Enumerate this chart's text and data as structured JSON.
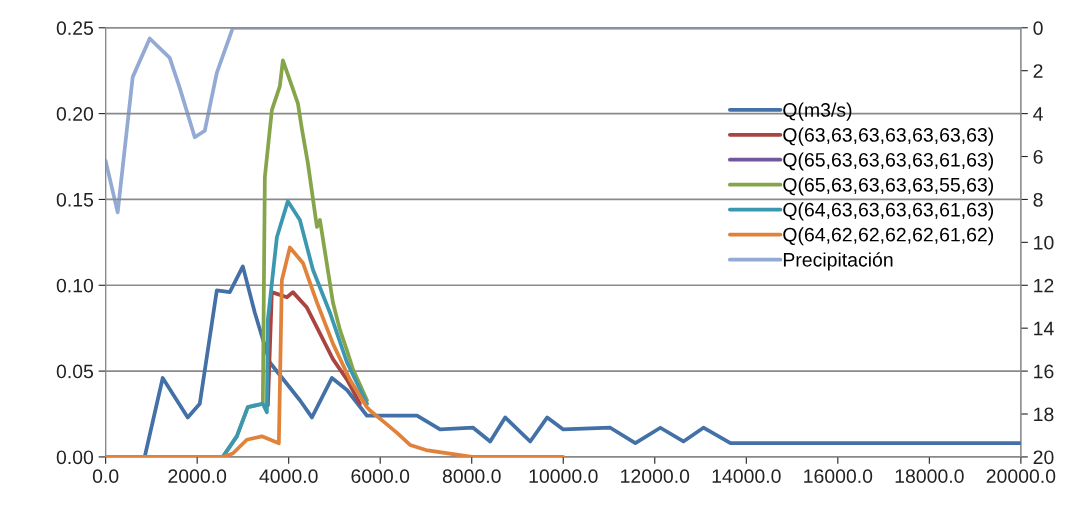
{
  "chart_data": {
    "type": "line",
    "xlim": [
      0,
      20000
    ],
    "xticks": [
      {
        "value": 0,
        "label": "0.0"
      },
      {
        "value": 2000,
        "label": "2000.0"
      },
      {
        "value": 4000,
        "label": "4000.0"
      },
      {
        "value": 6000,
        "label": "6000.0"
      },
      {
        "value": 8000,
        "label": "8000.0"
      },
      {
        "value": 10000,
        "label": "10000.0"
      },
      {
        "value": 12000,
        "label": "12000.0"
      },
      {
        "value": 14000,
        "label": "14000.0"
      },
      {
        "value": 16000,
        "label": "16000.0"
      },
      {
        "value": 18000,
        "label": "18000.0"
      },
      {
        "value": 20000,
        "label": "20000.0"
      }
    ],
    "ylim": [
      0,
      0.25
    ],
    "yticks": [
      {
        "value": 0,
        "label": "0.00"
      },
      {
        "value": 0.05,
        "label": "0.05"
      },
      {
        "value": 0.1,
        "label": "0.10"
      },
      {
        "value": 0.15,
        "label": "0.15"
      },
      {
        "value": 0.2,
        "label": "0.20"
      },
      {
        "value": 0.25,
        "label": "0.25"
      }
    ],
    "y2lim": [
      20,
      0
    ],
    "y2ticks": [
      0,
      2,
      4,
      6,
      8,
      10,
      12,
      14,
      16,
      18,
      20
    ],
    "grid": "y",
    "legend": "right",
    "marker": "none",
    "line_style": "solid",
    "series": [
      {
        "name": "Q(m3/s)",
        "color": "#4470a8",
        "x": [
          0,
          853,
          1247,
          1794,
          2057,
          2429,
          2713,
          2998,
          3260,
          3589,
          4245,
          4508,
          4945,
          5274,
          5711,
          5842,
          6805,
          7308,
          8031,
          8403,
          8731,
          9278,
          9650,
          10000,
          11028,
          11575,
          12122,
          12626,
          13063,
          13654,
          20000
        ],
        "values": [
          0,
          0,
          0.046,
          0.023,
          0.031,
          0.097,
          0.096,
          0.111,
          0.084,
          0.055,
          0.033,
          0.023,
          0.046,
          0.039,
          0.024,
          0.024,
          0.024,
          0.016,
          0.017,
          0.009,
          0.023,
          0.009,
          0.023,
          0.016,
          0.017,
          0.008,
          0.017,
          0.009,
          0.017,
          0.008,
          0.008
        ]
      },
      {
        "name": "Q(63,63,63,63,63,63,63)",
        "color": "#a94441",
        "x": [
          3545,
          3632,
          3961,
          4092,
          4398,
          4683,
          4967,
          5274,
          5558
        ],
        "values": [
          0.03,
          0.096,
          0.093,
          0.096,
          0.087,
          0.072,
          0.057,
          0.045,
          0.031
        ]
      },
      {
        "name": "Q(65,63,63,63,63,61,63)",
        "color": "#72579a",
        "values": [
          null
        ]
      },
      {
        "name": "Q(65,63,63,63,63,55,63)",
        "color": "#86a54a",
        "x": [
          2560,
          2866,
          3107,
          3435,
          3479,
          3632,
          3807,
          3873,
          4070,
          4201,
          4289,
          4420,
          4617,
          4683,
          4967,
          5120,
          5274,
          5405,
          5711
        ],
        "values": [
          0,
          0.012,
          0.029,
          0.031,
          0.163,
          0.202,
          0.216,
          0.231,
          0.216,
          0.206,
          0.191,
          0.171,
          0.134,
          0.138,
          0.09,
          0.074,
          0.062,
          0.051,
          0.033
        ]
      },
      {
        "name": "Q(64,63,63,63,63,61,63)",
        "color": "#3b98b0",
        "x": [
          2560,
          2866,
          3107,
          3435,
          3523,
          3545,
          3742,
          3982,
          4245,
          4530,
          4902,
          5274,
          5711
        ],
        "values": [
          0,
          0.012,
          0.029,
          0.031,
          0.026,
          0.08,
          0.128,
          0.149,
          0.138,
          0.109,
          0.084,
          0.055,
          0.031
        ]
      },
      {
        "name": "Q(64,62,62,62,62,61,62)",
        "color": "#e0823a",
        "x": [
          0,
          2560,
          2779,
          3085,
          3414,
          3785,
          3851,
          4026,
          4311,
          4617,
          4967,
          5339,
          5711,
          5777,
          6100,
          6368,
          6652,
          7000,
          7746,
          8000,
          10000
        ],
        "values": [
          0,
          0,
          0.002,
          0.01,
          0.012,
          0.008,
          0.103,
          0.122,
          0.113,
          0.09,
          0.066,
          0.045,
          0.029,
          0.027,
          0.02,
          0.014,
          0.007,
          0.004,
          0.001,
          0,
          0
        ]
      },
      {
        "name": "Precipitación",
        "color": "#93aad4",
        "axis": "y2",
        "x": [
          0,
          263,
          591,
          963,
          1400,
          1619,
          1947,
          2166,
          2429,
          2779,
          20000
        ],
        "values": [
          6.2,
          8.6,
          2.3,
          0.5,
          1.4,
          2.8,
          5.1,
          4.8,
          2.1,
          0,
          0
        ]
      }
    ]
  }
}
